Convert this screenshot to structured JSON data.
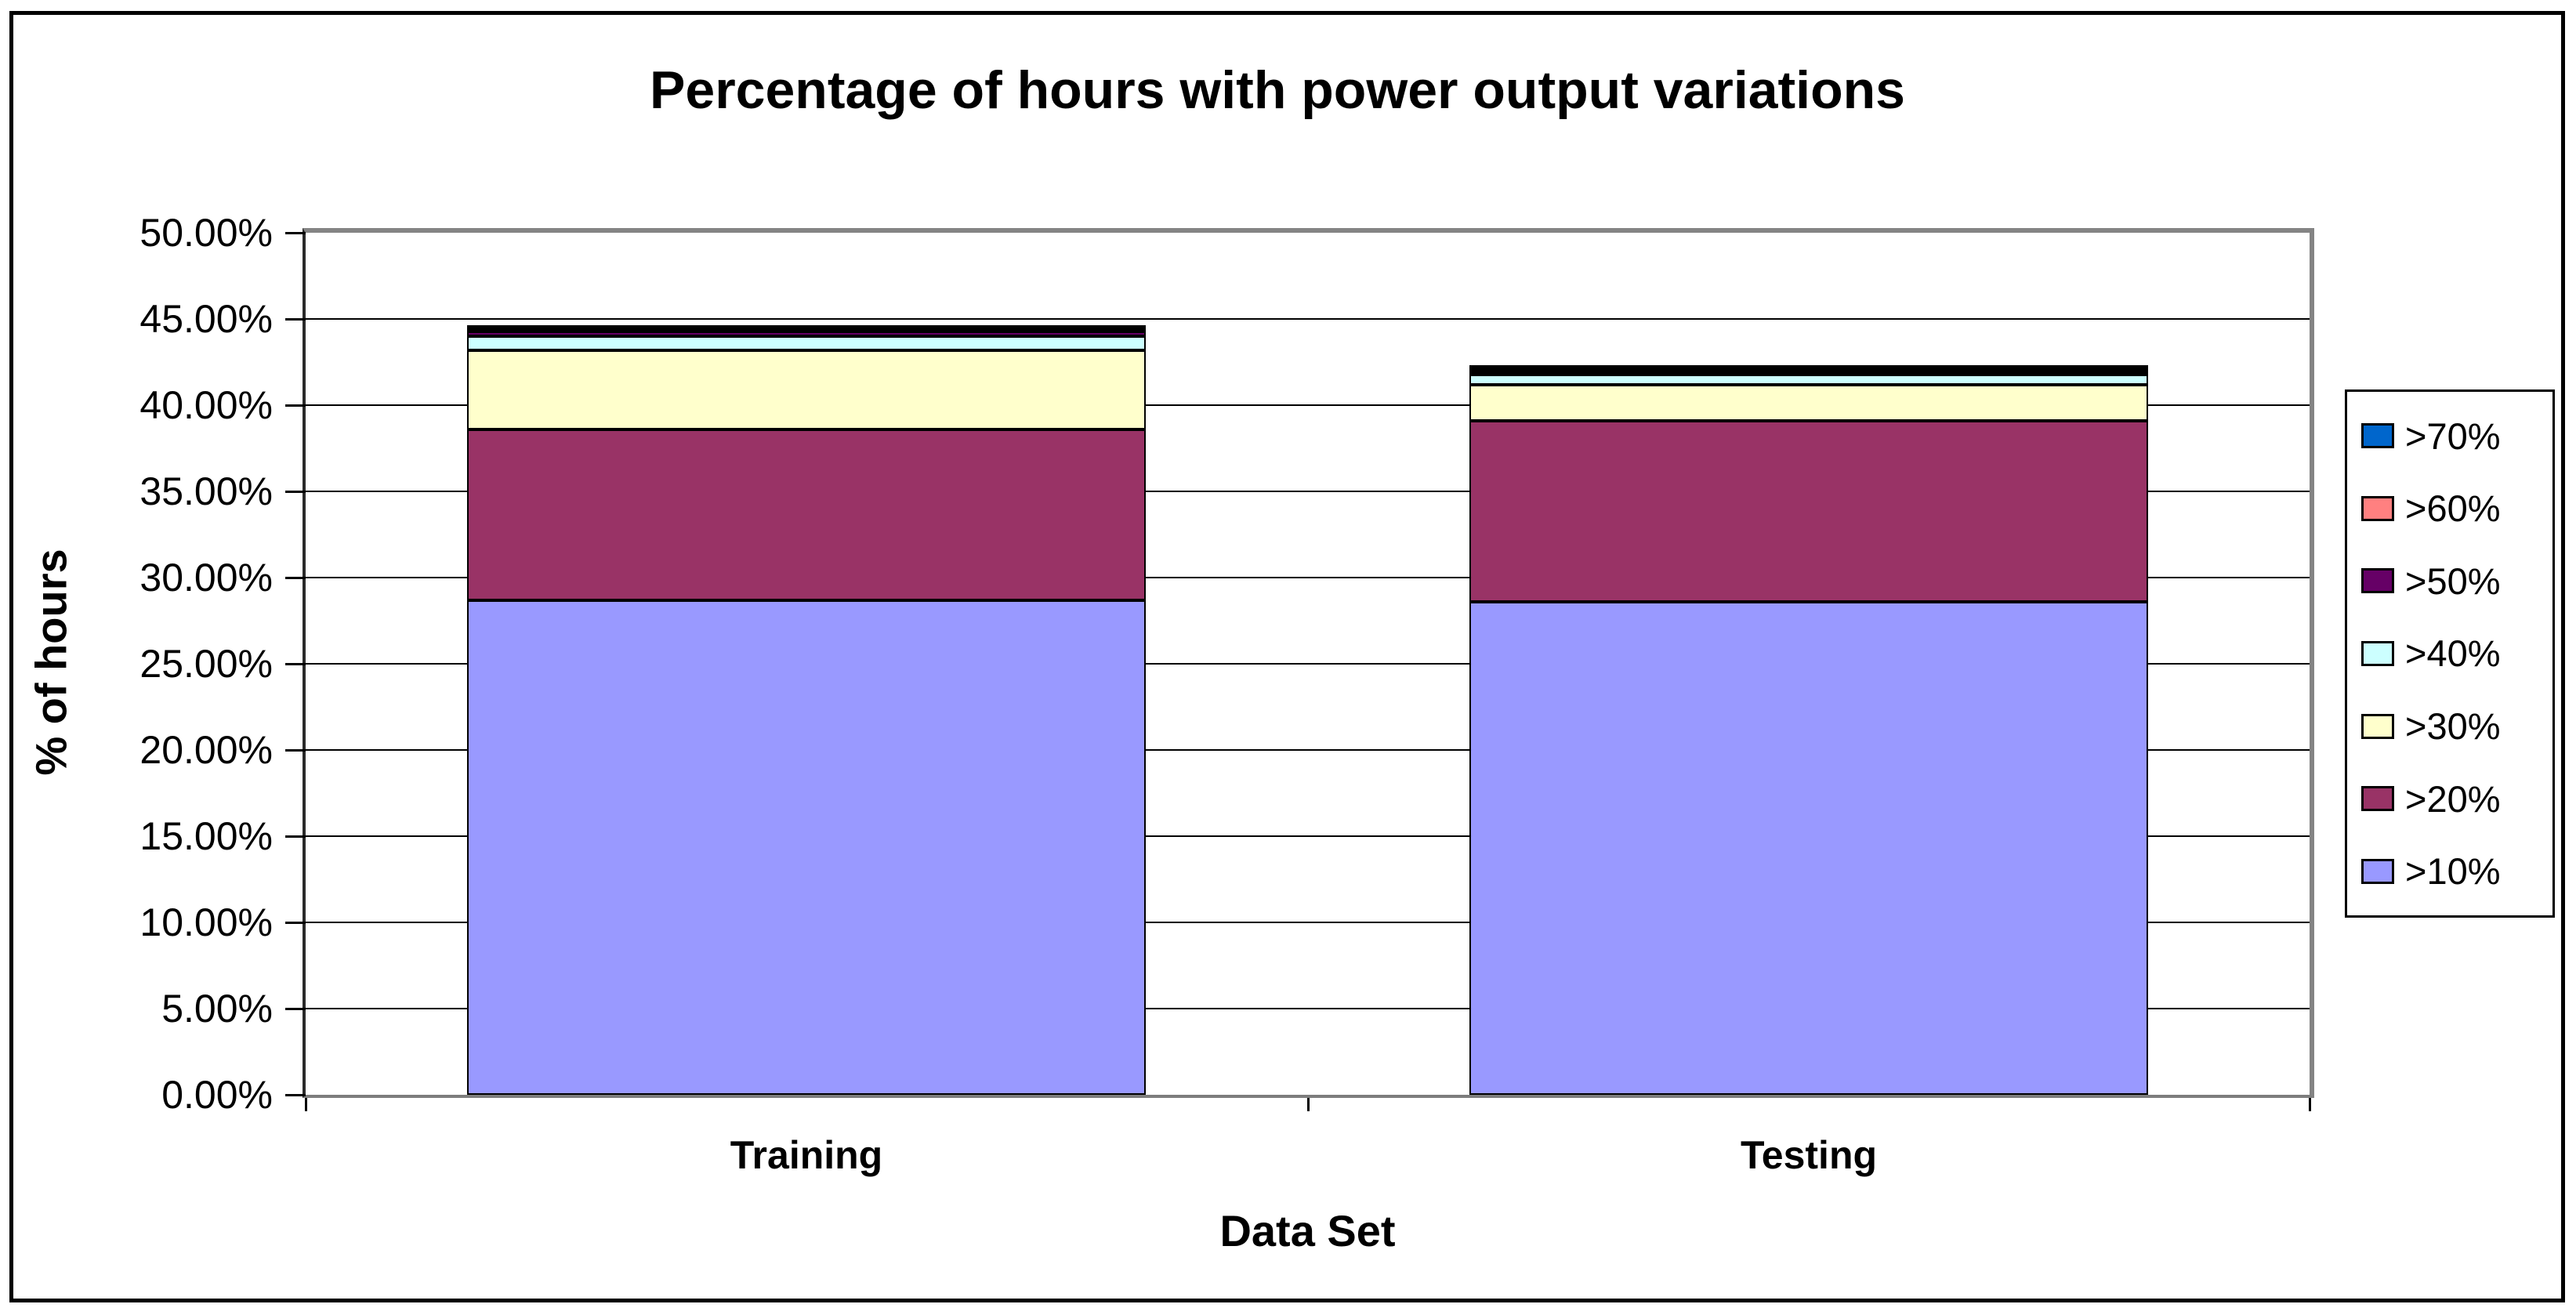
{
  "chart_data": {
    "type": "bar",
    "stacked": true,
    "title": "Percentage of hours with power output variations",
    "xlabel": "Data Set",
    "ylabel": "% of hours",
    "categories": [
      "Training",
      "Testing"
    ],
    "series": [
      {
        "name": ">10%",
        "color": "#9999FF",
        "values": [
          28.7,
          28.6
        ]
      },
      {
        "name": ">20%",
        "color": "#993366",
        "values": [
          9.9,
          10.5
        ]
      },
      {
        "name": ">30%",
        "color": "#FFFFCC",
        "values": [
          4.6,
          2.1
        ]
      },
      {
        "name": ">40%",
        "color": "#CCFFFF",
        "values": [
          0.8,
          0.6
        ]
      },
      {
        "name": ">50%",
        "color": "#660066",
        "values": [
          0.25,
          0.2
        ]
      },
      {
        "name": ">60%",
        "color": "#FF8080",
        "values": [
          0.1,
          0.1
        ]
      },
      {
        "name": ">70%",
        "color": "#0066CC",
        "values": [
          0.1,
          0.1
        ]
      }
    ],
    "y_axis": {
      "min": 0,
      "max": 50,
      "step": 5,
      "tick_labels": [
        "0.00%",
        "5.00%",
        "10.00%",
        "15.00%",
        "20.00%",
        "25.00%",
        "30.00%",
        "35.00%",
        "40.00%",
        "45.00%",
        "50.00%"
      ]
    },
    "legend_position": "right",
    "legend_order_top_to_bottom": [
      ">70%",
      ">60%",
      ">50%",
      ">40%",
      ">30%",
      ">20%",
      ">10%"
    ],
    "grid": true,
    "colors": {
      "plot_border": "#808080",
      "gridline": "#000000",
      "bar_border": "#000000",
      "background": "#FFFFFF"
    }
  }
}
